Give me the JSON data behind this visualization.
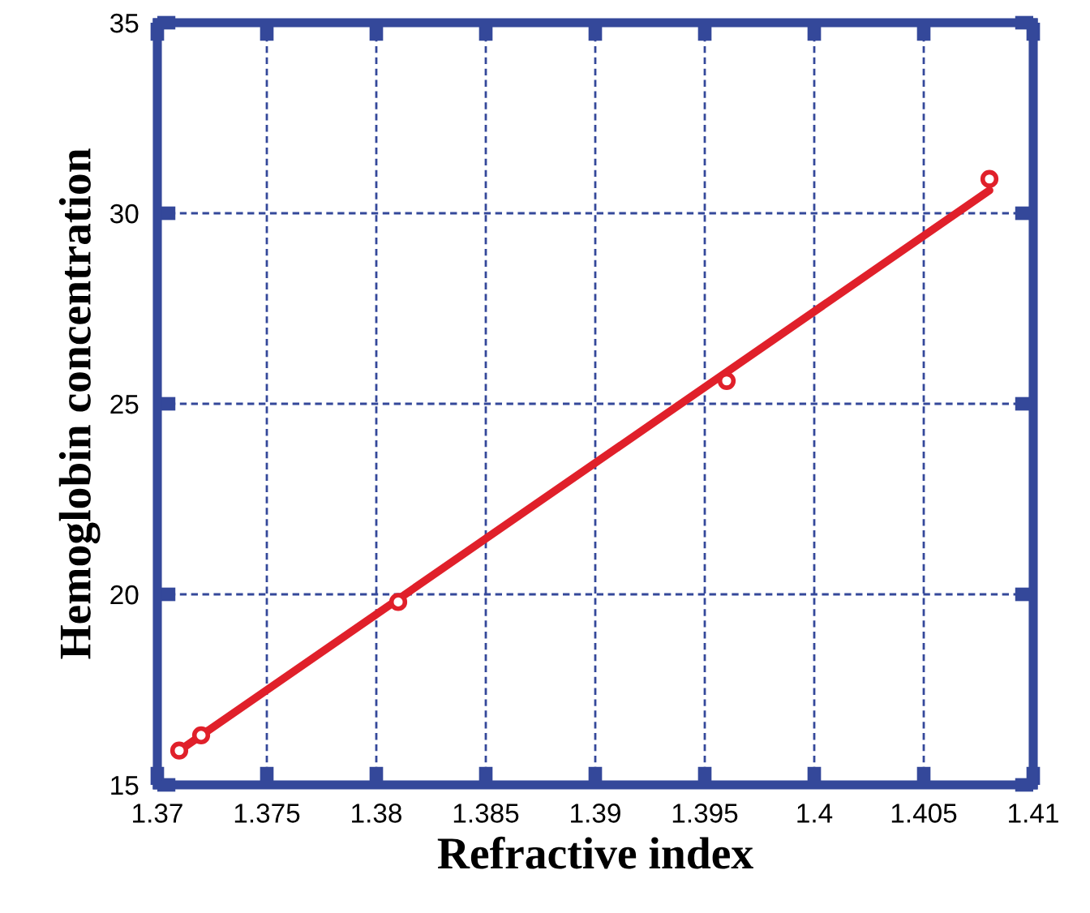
{
  "chart_data": {
    "type": "scatter",
    "xlabel": "Refractive index",
    "ylabel": "Hemoglobin concentration",
    "series": [
      {
        "color": "#e0202a",
        "marker": "circle",
        "x": [
          1.371,
          1.372,
          1.381,
          1.396,
          1.408
        ],
        "values": [
          15.9,
          16.3,
          19.8,
          25.6,
          30.9
        ]
      },
      {
        "type": "line",
        "color": "#e0202a",
        "line_style": "solid",
        "x": [
          1.371,
          1.408
        ],
        "values": [
          15.9,
          30.6
        ]
      }
    ],
    "xlim": [
      1.37,
      1.41
    ],
    "xticks": [
      1.37,
      1.375,
      1.38,
      1.385,
      1.39,
      1.395,
      1.4,
      1.405,
      1.41
    ],
    "ylim": [
      15,
      35
    ],
    "yticks": [
      15,
      20,
      25,
      30,
      35
    ],
    "grid": true
  }
}
